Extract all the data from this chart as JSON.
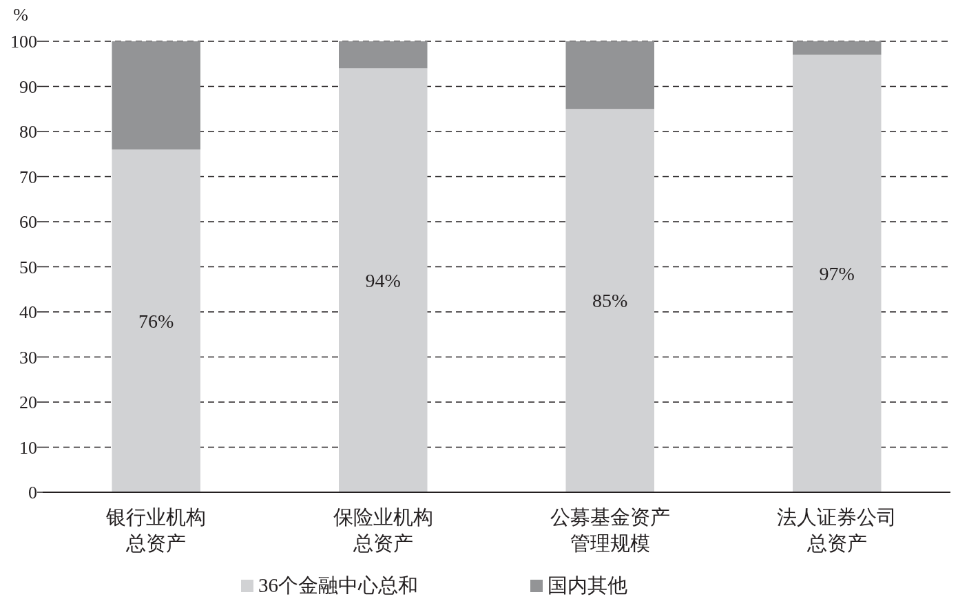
{
  "chart_data": {
    "type": "bar",
    "stacked": true,
    "ylabel": "%",
    "categories": [
      "银行业机构总资产",
      "保险业机构总资产",
      "公募基金资产管理规模",
      "法人证券公司总资产"
    ],
    "series": [
      {
        "name": "36个金融中心总和",
        "color": "#d1d2d4",
        "values": [
          76,
          94,
          85,
          97
        ],
        "value_labels": [
          "76%",
          "94%",
          "85%",
          "97%"
        ]
      },
      {
        "name": "国内其他",
        "color": "#939496",
        "values": [
          24,
          6,
          15,
          3
        ]
      }
    ],
    "ylim": [
      0,
      100
    ],
    "yticks": [
      0,
      10,
      20,
      30,
      40,
      50,
      60,
      70,
      80,
      90,
      100
    ],
    "grid": "y",
    "legend": "bottom"
  }
}
